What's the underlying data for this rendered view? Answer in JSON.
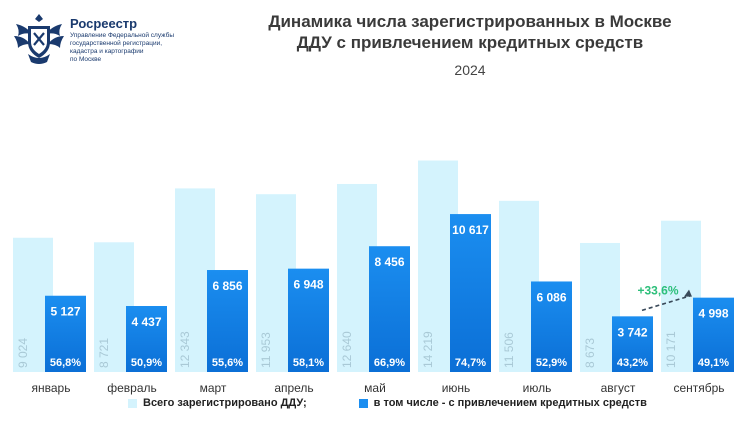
{
  "header": {
    "org_name": "Росреестр",
    "org_lines": [
      "Управление Федеральной службы",
      "государственной регистрации,",
      "кадастра и картографии",
      "по Москве"
    ],
    "title_line1": "Динамика числа зарегистрированных в Москве",
    "title_line2": "ДДУ с привлечением кредитных средств",
    "year": "2024"
  },
  "colors": {
    "total": "#d4f3fd",
    "credit": "#1b8ef0",
    "credit_dark": "#0b6fd6",
    "annotation": "#2dbf7a"
  },
  "chart_data": {
    "type": "bar",
    "categories": [
      "январь",
      "февраль",
      "март",
      "апрель",
      "май",
      "июнь",
      "июль",
      "август",
      "сентябрь"
    ],
    "series": [
      {
        "name": "Всего зарегистрировано ДДУ;",
        "values": [
          9024,
          8721,
          12343,
          11953,
          12640,
          14219,
          11506,
          8673,
          10171
        ],
        "labels": [
          "9 024",
          "8 721",
          "12 343",
          "11 953",
          "12 640",
          "14 219",
          "11 506",
          "8 673",
          "10 171"
        ]
      },
      {
        "name": "в том числе - с привлечением кредитных средств",
        "values": [
          5127,
          4437,
          6856,
          6948,
          8456,
          10617,
          6086,
          3742,
          4998
        ],
        "labels": [
          "5 127",
          "4 437",
          "6 856",
          "6 948",
          "8 456",
          "10 617",
          "6 086",
          "3 742",
          "4 998"
        ],
        "share_labels": [
          "56,8%",
          "50,9%",
          "55,6%",
          "58,1%",
          "66,9%",
          "74,7%",
          "52,9%",
          "43,2%",
          "49,1%"
        ]
      }
    ],
    "annotation": {
      "text": "+33,6%",
      "from": "август",
      "to": "сентябрь"
    },
    "ylim": [
      0,
      16000
    ],
    "grid": false,
    "legend": "bottom"
  }
}
